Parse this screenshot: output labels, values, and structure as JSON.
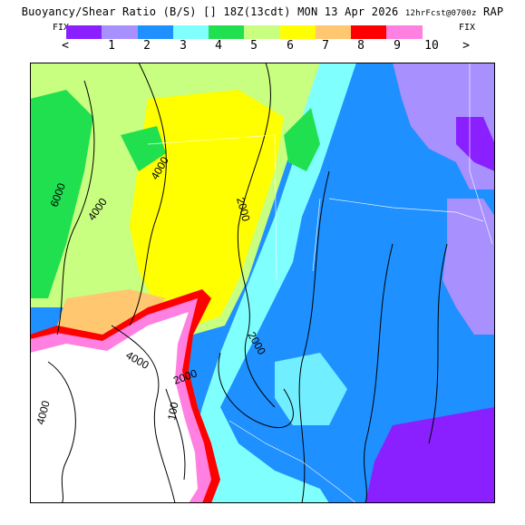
{
  "header": {
    "title_main": "Buoyancy/Shear Ratio (B/S) [] 18Z(13cdt) MON 13 Apr 2026",
    "title_fcst": "12hrFcst@0700z",
    "title_model": "RAP"
  },
  "legend": {
    "fix_left": "FIX",
    "fix_right": "FIX",
    "lt_label": "<",
    "gt_label": ">",
    "colors": [
      "#8a20ff",
      "#a890ff",
      "#1e90ff",
      "#80ffff",
      "#20e050",
      "#c8ff80",
      "#ffff00",
      "#ffc870",
      "#ff0000",
      "#ff80e0",
      "#ffffff"
    ],
    "ticks": [
      "1",
      "2",
      "3",
      "4",
      "5",
      "6",
      "7",
      "8",
      "9",
      "10"
    ]
  },
  "contours": {
    "labels": [
      "6000",
      "4000",
      "4000",
      "2000",
      "2000",
      "4000",
      "2000",
      "4000",
      "100"
    ]
  }
}
